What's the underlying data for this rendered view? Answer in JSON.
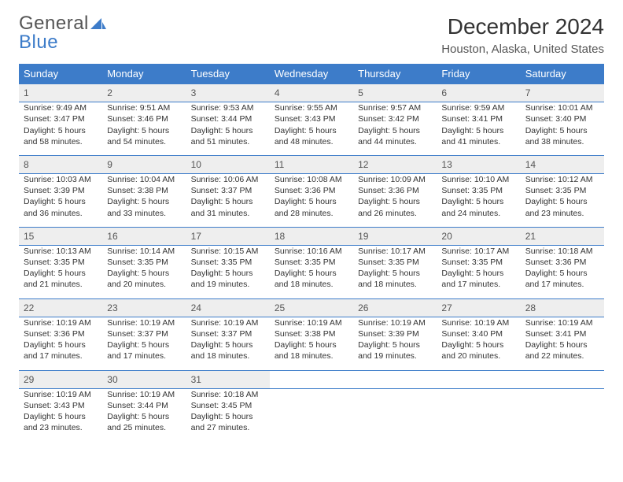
{
  "logo": {
    "word1": "General",
    "word2": "Blue"
  },
  "title": "December 2024",
  "location": "Houston, Alaska, United States",
  "colors": {
    "header_bg": "#3d7cc9",
    "header_text": "#ffffff",
    "daynum_bg": "#eeeeee",
    "border": "#3d7cc9",
    "text": "#333333",
    "muted": "#555555"
  },
  "weekdays": [
    "Sunday",
    "Monday",
    "Tuesday",
    "Wednesday",
    "Thursday",
    "Friday",
    "Saturday"
  ],
  "labels": {
    "sunrise": "Sunrise:",
    "sunset": "Sunset:",
    "daylight": "Daylight:"
  },
  "weeks": [
    [
      {
        "day": "1",
        "sunrise": "9:49 AM",
        "sunset": "3:47 PM",
        "daylight": "5 hours and 58 minutes."
      },
      {
        "day": "2",
        "sunrise": "9:51 AM",
        "sunset": "3:46 PM",
        "daylight": "5 hours and 54 minutes."
      },
      {
        "day": "3",
        "sunrise": "9:53 AM",
        "sunset": "3:44 PM",
        "daylight": "5 hours and 51 minutes."
      },
      {
        "day": "4",
        "sunrise": "9:55 AM",
        "sunset": "3:43 PM",
        "daylight": "5 hours and 48 minutes."
      },
      {
        "day": "5",
        "sunrise": "9:57 AM",
        "sunset": "3:42 PM",
        "daylight": "5 hours and 44 minutes."
      },
      {
        "day": "6",
        "sunrise": "9:59 AM",
        "sunset": "3:41 PM",
        "daylight": "5 hours and 41 minutes."
      },
      {
        "day": "7",
        "sunrise": "10:01 AM",
        "sunset": "3:40 PM",
        "daylight": "5 hours and 38 minutes."
      }
    ],
    [
      {
        "day": "8",
        "sunrise": "10:03 AM",
        "sunset": "3:39 PM",
        "daylight": "5 hours and 36 minutes."
      },
      {
        "day": "9",
        "sunrise": "10:04 AM",
        "sunset": "3:38 PM",
        "daylight": "5 hours and 33 minutes."
      },
      {
        "day": "10",
        "sunrise": "10:06 AM",
        "sunset": "3:37 PM",
        "daylight": "5 hours and 31 minutes."
      },
      {
        "day": "11",
        "sunrise": "10:08 AM",
        "sunset": "3:36 PM",
        "daylight": "5 hours and 28 minutes."
      },
      {
        "day": "12",
        "sunrise": "10:09 AM",
        "sunset": "3:36 PM",
        "daylight": "5 hours and 26 minutes."
      },
      {
        "day": "13",
        "sunrise": "10:10 AM",
        "sunset": "3:35 PM",
        "daylight": "5 hours and 24 minutes."
      },
      {
        "day": "14",
        "sunrise": "10:12 AM",
        "sunset": "3:35 PM",
        "daylight": "5 hours and 23 minutes."
      }
    ],
    [
      {
        "day": "15",
        "sunrise": "10:13 AM",
        "sunset": "3:35 PM",
        "daylight": "5 hours and 21 minutes."
      },
      {
        "day": "16",
        "sunrise": "10:14 AM",
        "sunset": "3:35 PM",
        "daylight": "5 hours and 20 minutes."
      },
      {
        "day": "17",
        "sunrise": "10:15 AM",
        "sunset": "3:35 PM",
        "daylight": "5 hours and 19 minutes."
      },
      {
        "day": "18",
        "sunrise": "10:16 AM",
        "sunset": "3:35 PM",
        "daylight": "5 hours and 18 minutes."
      },
      {
        "day": "19",
        "sunrise": "10:17 AM",
        "sunset": "3:35 PM",
        "daylight": "5 hours and 18 minutes."
      },
      {
        "day": "20",
        "sunrise": "10:17 AM",
        "sunset": "3:35 PM",
        "daylight": "5 hours and 17 minutes."
      },
      {
        "day": "21",
        "sunrise": "10:18 AM",
        "sunset": "3:36 PM",
        "daylight": "5 hours and 17 minutes."
      }
    ],
    [
      {
        "day": "22",
        "sunrise": "10:19 AM",
        "sunset": "3:36 PM",
        "daylight": "5 hours and 17 minutes."
      },
      {
        "day": "23",
        "sunrise": "10:19 AM",
        "sunset": "3:37 PM",
        "daylight": "5 hours and 17 minutes."
      },
      {
        "day": "24",
        "sunrise": "10:19 AM",
        "sunset": "3:37 PM",
        "daylight": "5 hours and 18 minutes."
      },
      {
        "day": "25",
        "sunrise": "10:19 AM",
        "sunset": "3:38 PM",
        "daylight": "5 hours and 18 minutes."
      },
      {
        "day": "26",
        "sunrise": "10:19 AM",
        "sunset": "3:39 PM",
        "daylight": "5 hours and 19 minutes."
      },
      {
        "day": "27",
        "sunrise": "10:19 AM",
        "sunset": "3:40 PM",
        "daylight": "5 hours and 20 minutes."
      },
      {
        "day": "28",
        "sunrise": "10:19 AM",
        "sunset": "3:41 PM",
        "daylight": "5 hours and 22 minutes."
      }
    ],
    [
      {
        "day": "29",
        "sunrise": "10:19 AM",
        "sunset": "3:43 PM",
        "daylight": "5 hours and 23 minutes."
      },
      {
        "day": "30",
        "sunrise": "10:19 AM",
        "sunset": "3:44 PM",
        "daylight": "5 hours and 25 minutes."
      },
      {
        "day": "31",
        "sunrise": "10:18 AM",
        "sunset": "3:45 PM",
        "daylight": "5 hours and 27 minutes."
      },
      null,
      null,
      null,
      null
    ]
  ]
}
